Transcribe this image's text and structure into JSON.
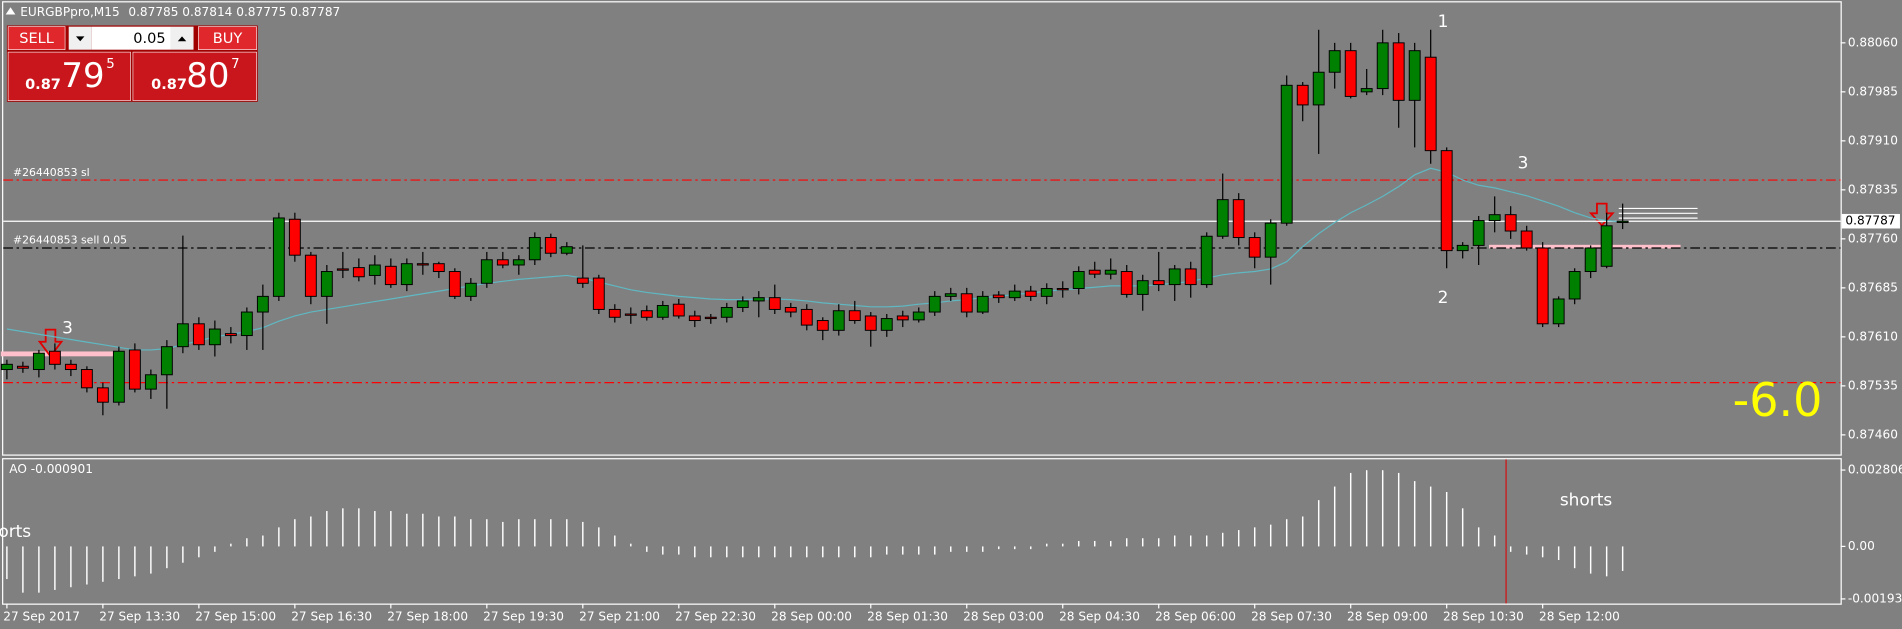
{
  "chart_data": [
    {
      "type": "candlestick",
      "title": "EURGBPpro,M15",
      "categories": [
        "27 Sep 2017",
        null,
        null,
        null,
        null,
        null,
        "27 Sep 13:30",
        null,
        null,
        null,
        null,
        null,
        "27 Sep 15:00",
        null,
        null,
        null,
        null,
        null,
        "27 Sep 16:30",
        null,
        null,
        null,
        null,
        null,
        "27 Sep 18:00",
        null,
        null,
        null,
        null,
        null,
        "27 Sep 19:30",
        null,
        null,
        null,
        null,
        null,
        "27 Sep 21:00",
        null,
        null,
        null,
        null,
        null,
        "27 Sep 22:30",
        null,
        null,
        null,
        null,
        null,
        "28 Sep 00:00",
        null,
        null,
        null,
        null,
        null,
        "28 Sep 01:30",
        null,
        null,
        null,
        null,
        null,
        "28 Sep 03:00",
        null,
        null,
        null,
        null,
        null,
        "28 Sep 04:30",
        null,
        null,
        null,
        null,
        null,
        "28 Sep 06:00",
        null,
        null,
        null,
        null,
        null,
        "28 Sep 07:30",
        null,
        null,
        null,
        null,
        null,
        "28 Sep 09:00",
        null,
        null,
        null,
        null,
        null,
        "28 Sep 10:30",
        null,
        null,
        null,
        null,
        null,
        "28 Sep 12:00",
        null,
        null,
        null,
        null,
        null
      ],
      "open": [
        0.8756,
        0.87565,
        0.8756,
        0.87588,
        0.87568,
        0.8756,
        0.87532,
        0.8751,
        0.8759,
        0.8753,
        0.87552,
        0.87595,
        0.8763,
        0.87598,
        0.87615,
        0.87612,
        0.87648,
        0.87672,
        0.8779,
        0.87735,
        0.87672,
        0.87714,
        0.87716,
        0.87704,
        0.87718,
        0.8769,
        0.87722,
        0.87722,
        0.8771,
        0.87672,
        0.87692,
        0.87728,
        0.8772,
        0.87728,
        0.87762,
        0.87738,
        0.877,
        0.877,
        0.87652,
        0.87645,
        0.8765,
        0.8764,
        0.8766,
        0.87642,
        0.8764,
        0.8764,
        0.87655,
        0.87665,
        0.8767,
        0.87655,
        0.87652,
        0.87635,
        0.8762,
        0.8765,
        0.87642,
        0.8762,
        0.87642,
        0.87636,
        0.87648,
        0.87672,
        0.87676,
        0.87648,
        0.87674,
        0.8767,
        0.8768,
        0.87672,
        0.87684,
        0.87684,
        0.87712,
        0.87706,
        0.8771,
        0.87675,
        0.87696,
        0.8769,
        0.87714,
        0.8769,
        0.87764,
        0.8782,
        0.87762,
        0.87732,
        0.87784,
        0.87995,
        0.87965,
        0.88015,
        0.88048,
        0.87985,
        0.8799,
        0.8806,
        0.87972,
        0.88038,
        0.87895,
        0.87742,
        0.8775,
        0.87788,
        0.87797,
        0.87772,
        0.87746,
        0.8763,
        0.87668,
        0.8771,
        0.87718,
        0.87785
      ],
      "high": [
        0.87575,
        0.87572,
        0.8759,
        0.876,
        0.87575,
        0.87565,
        0.8754,
        0.87595,
        0.876,
        0.8756,
        0.87605,
        0.87765,
        0.8764,
        0.87635,
        0.87625,
        0.87655,
        0.8769,
        0.878,
        0.878,
        0.8774,
        0.8772,
        0.8774,
        0.8773,
        0.87735,
        0.8773,
        0.8773,
        0.8774,
        0.87725,
        0.87715,
        0.877,
        0.8774,
        0.8774,
        0.87735,
        0.8777,
        0.87768,
        0.87755,
        0.8775,
        0.87705,
        0.8766,
        0.87655,
        0.87658,
        0.87665,
        0.87668,
        0.8765,
        0.87645,
        0.87662,
        0.87672,
        0.8768,
        0.8769,
        0.87662,
        0.8766,
        0.8764,
        0.8766,
        0.87665,
        0.87648,
        0.87645,
        0.8765,
        0.87655,
        0.8768,
        0.87685,
        0.87685,
        0.8768,
        0.8768,
        0.8769,
        0.87688,
        0.87692,
        0.87695,
        0.87718,
        0.87725,
        0.8773,
        0.8772,
        0.87705,
        0.8774,
        0.8772,
        0.87725,
        0.8777,
        0.8786,
        0.8783,
        0.8777,
        0.8779,
        0.8801,
        0.88,
        0.8808,
        0.8806,
        0.8806,
        0.8802,
        0.8808,
        0.88075,
        0.8806,
        0.8808,
        0.879,
        0.87755,
        0.87795,
        0.87825,
        0.8781,
        0.8778,
        0.87755,
        0.87672,
        0.87715,
        0.8775,
        0.878,
        0.87814
      ],
      "low": [
        0.87545,
        0.87555,
        0.87548,
        0.8756,
        0.8755,
        0.87525,
        0.8749,
        0.87505,
        0.87525,
        0.87515,
        0.875,
        0.87585,
        0.8759,
        0.8758,
        0.876,
        0.8759,
        0.8759,
        0.87665,
        0.87725,
        0.8766,
        0.8763,
        0.877,
        0.87695,
        0.8769,
        0.87685,
        0.8768,
        0.87705,
        0.877,
        0.87668,
        0.87665,
        0.87685,
        0.87715,
        0.87705,
        0.8772,
        0.87732,
        0.87735,
        0.87685,
        0.87645,
        0.87632,
        0.8763,
        0.87635,
        0.87636,
        0.87638,
        0.87625,
        0.8763,
        0.87632,
        0.87648,
        0.8764,
        0.87645,
        0.8764,
        0.8762,
        0.87605,
        0.87612,
        0.8763,
        0.87595,
        0.8761,
        0.87625,
        0.87632,
        0.87642,
        0.87665,
        0.8764,
        0.87645,
        0.87662,
        0.87665,
        0.87665,
        0.8766,
        0.8767,
        0.87675,
        0.877,
        0.87698,
        0.8767,
        0.8765,
        0.8768,
        0.87665,
        0.8767,
        0.87685,
        0.8776,
        0.8775,
        0.87715,
        0.8769,
        0.8778,
        0.8794,
        0.8789,
        0.8799,
        0.87975,
        0.8798,
        0.8798,
        0.8793,
        0.879,
        0.87875,
        0.87715,
        0.8773,
        0.8772,
        0.8777,
        0.8776,
        0.87742,
        0.87625,
        0.87625,
        0.8766,
        0.877,
        0.87715,
        0.87775
      ],
      "close": [
        0.87568,
        0.87562,
        0.87585,
        0.87568,
        0.8756,
        0.87532,
        0.8751,
        0.87588,
        0.8753,
        0.87552,
        0.87595,
        0.8763,
        0.87598,
        0.87622,
        0.87612,
        0.87648,
        0.87672,
        0.87792,
        0.87735,
        0.87672,
        0.8771,
        0.87712,
        0.87702,
        0.8772,
        0.8769,
        0.87722,
        0.8772,
        0.8771,
        0.87672,
        0.87692,
        0.87728,
        0.8772,
        0.87728,
        0.87762,
        0.87738,
        0.87748,
        0.87692,
        0.87652,
        0.8764,
        0.87643,
        0.8764,
        0.87658,
        0.87642,
        0.87635,
        0.87638,
        0.87655,
        0.87665,
        0.8767,
        0.87652,
        0.87648,
        0.87628,
        0.8762,
        0.8765,
        0.87635,
        0.8762,
        0.87638,
        0.87636,
        0.87648,
        0.87672,
        0.87676,
        0.87648,
        0.87672,
        0.8767,
        0.8768,
        0.87672,
        0.87684,
        0.87682,
        0.8771,
        0.87706,
        0.87712,
        0.87675,
        0.87696,
        0.8769,
        0.87714,
        0.8769,
        0.87764,
        0.8782,
        0.87762,
        0.87732,
        0.87784,
        0.87995,
        0.87965,
        0.88015,
        0.88048,
        0.87978,
        0.8799,
        0.8806,
        0.87972,
        0.88048,
        0.87895,
        0.87742,
        0.8775,
        0.87788,
        0.87797,
        0.87772,
        0.87746,
        0.8763,
        0.87668,
        0.8771,
        0.87746,
        0.8778,
        0.87787
      ],
      "up_color": "#008000",
      "down_color": "#ff0000",
      "ma": {
        "color": "#5fb8c2",
        "values": [
          0.87622,
          0.87618,
          0.87614,
          0.8761,
          0.87606,
          0.87602,
          0.87598,
          0.87594,
          0.8759,
          0.8759,
          0.87592,
          0.87598,
          0.87604,
          0.8761,
          0.87614,
          0.87618,
          0.87624,
          0.87634,
          0.87642,
          0.87648,
          0.87652,
          0.87656,
          0.8766,
          0.87664,
          0.87668,
          0.87672,
          0.87676,
          0.8768,
          0.87684,
          0.87688,
          0.87692,
          0.87695,
          0.87698,
          0.877,
          0.87702,
          0.87704,
          0.877,
          0.87694,
          0.87688,
          0.87682,
          0.87678,
          0.87675,
          0.87672,
          0.8767,
          0.87668,
          0.87667,
          0.87667,
          0.87668,
          0.87668,
          0.87667,
          0.87665,
          0.87662,
          0.8766,
          0.87658,
          0.87656,
          0.87656,
          0.87657,
          0.8766,
          0.87662,
          0.87665,
          0.87667,
          0.8767,
          0.87672,
          0.87675,
          0.87677,
          0.8768,
          0.87682,
          0.87684,
          0.87686,
          0.87688,
          0.87688,
          0.87688,
          0.8769,
          0.87692,
          0.87695,
          0.877,
          0.87705,
          0.87708,
          0.8771,
          0.87714,
          0.87725,
          0.87748,
          0.87768,
          0.87785,
          0.878,
          0.87812,
          0.87825,
          0.8784,
          0.87858,
          0.87868,
          0.87862,
          0.8785,
          0.87842,
          0.87838,
          0.87832,
          0.87826,
          0.87818,
          0.8781,
          0.878,
          0.87792,
          0.87788,
          0.87786
        ]
      },
      "levels": [
        {
          "label": "#26440853 sl",
          "value": 0.8785,
          "color": "#ff0000"
        },
        {
          "label": "#26440853 sell 0.05",
          "value": 0.87746,
          "color": "#000000"
        },
        {
          "value": 0.8754,
          "color": "#ff0000"
        }
      ],
      "ylim": [
        0.8743,
        0.8812
      ],
      "yticks": [
        {
          "value": 0.8806,
          "label": "0.88060"
        },
        0.87985,
        {
          "value": 0.8791,
          "label": "0.87910"
        },
        0.87835,
        {
          "value": 0.8776,
          "label": "0.87760"
        },
        0.87685,
        {
          "value": 0.8761,
          "label": "0.87610"
        },
        0.87535,
        {
          "value": 0.8746,
          "label": "0.87460"
        }
      ],
      "annotations": [
        "1",
        "2",
        "3",
        "3",
        "-6.0"
      ]
    },
    {
      "type": "bar",
      "title": "AO",
      "color": "#ffffff",
      "values": [
        -0.0012,
        -0.0017,
        -0.0017,
        -0.0016,
        -0.0015,
        -0.0014,
        -0.0013,
        -0.0012,
        -0.0011,
        -0.001,
        -0.0008,
        -0.0006,
        -0.0004,
        -0.0002,
        0.0001,
        0.0003,
        0.0004,
        0.0007,
        0.001,
        0.0011,
        0.0013,
        0.0014,
        0.0014,
        0.0013,
        0.0013,
        0.0012,
        0.0012,
        0.0011,
        0.0011,
        0.001,
        0.001,
        0.0009,
        0.001,
        0.001,
        0.001,
        0.001,
        0.0009,
        0.0007,
        0.0004,
        0.0001,
        -0.0002,
        -0.0003,
        -0.0003,
        -0.0004,
        -0.0004,
        -0.0004,
        -0.0004,
        -0.0004,
        -0.0004,
        -0.0004,
        -0.0004,
        -0.0004,
        -0.0004,
        -0.0004,
        -0.0004,
        -0.0003,
        -0.0003,
        -0.0003,
        -0.0003,
        -0.0002,
        -0.0002,
        -0.0002,
        -0.0001,
        -0.0001,
        -0.0001,
        0.0001,
        0.0001,
        0.0002,
        0.0002,
        0.0002,
        0.0003,
        0.0003,
        0.0003,
        0.0004,
        0.0004,
        0.0004,
        0.0005,
        0.0006,
        0.0007,
        0.0008,
        0.001,
        0.0011,
        0.0017,
        0.0022,
        0.0027,
        0.0028,
        0.0028,
        0.0027,
        0.0024,
        0.0022,
        0.002,
        0.0014,
        0.0007,
        0.0004,
        -0.0002,
        -0.0003,
        -0.0004,
        -0.0005,
        -0.0008,
        -0.001,
        -0.0011,
        -0.000901
      ],
      "ylim": [
        -0.0021,
        0.0032
      ],
      "yticks": [
        0.002806,
        {
          "value": 0,
          "label": "0.00"
        },
        -0.00193
      ],
      "annotations": [
        "shorts",
        "shorts"
      ]
    }
  ],
  "trade_panel": {
    "sell": "SELL",
    "lot": "0.05",
    "buy": "BUY",
    "bid": {
      "prefix": "0.87",
      "big": "79",
      "small": "5"
    },
    "ask": {
      "prefix": "0.87",
      "big": "80",
      "small": "7"
    }
  }
}
